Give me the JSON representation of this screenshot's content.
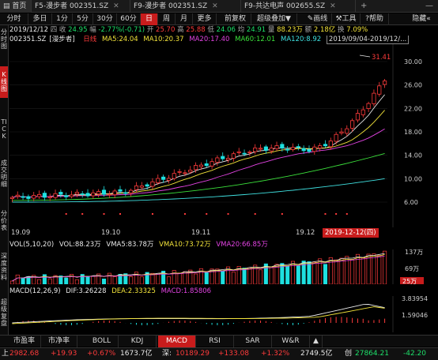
{
  "tabs": [
    {
      "label": "首页",
      "closable": false
    },
    {
      "label": "F5-漫步者 002351.SZ",
      "closable": true
    },
    {
      "label": "F9-漫步者 002351.SZ",
      "closable": true
    },
    {
      "label": "F9-共达电声 002655.SZ",
      "closable": true
    }
  ],
  "window_controls": {
    "add": "+",
    "minimize": "—"
  },
  "toolbar": {
    "periods": [
      "分时",
      "多日",
      "1分",
      "5分",
      "30分",
      "60分",
      "日",
      "周",
      "月",
      "更多"
    ],
    "active_period": "日",
    "buttons": [
      "前复权",
      "超级叠加",
      "画线",
      "工具",
      "帮助",
      "隐藏"
    ],
    "super_overlay_arrow": "▼",
    "hide_arrow": "«"
  },
  "left_strip": {
    "items": [
      "分时图",
      "K线图",
      "TICK",
      "成交明细",
      "分价表",
      "深度资料",
      "超级复盘"
    ],
    "active": "K线图"
  },
  "quote": {
    "date": "2019/12/12",
    "weekday": "四",
    "收_label": "收",
    "收": "24.95",
    "幅_label": "幅",
    "幅": "-2.77%(-0.71)",
    "开_label": "开",
    "开": "25.70",
    "高_label": "高",
    "高": "25.88",
    "低_label": "低",
    "低": "24.06",
    "均_label": "均",
    "均": "24.91",
    "量_label": "量",
    "量": "88.23万",
    "额_label": "额",
    "额": "2.18亿",
    "换_label": "换",
    "换": "7.09%"
  },
  "ma_line": {
    "code": "002351.SZ",
    "name": "[漫步者]",
    "period": "日线",
    "ma5": "MA5:24.04",
    "ma10": "MA10:20.37",
    "ma20": "MA20:17.40",
    "ma60": "MA60:12.01",
    "ma120": "MA120:8.92",
    "date_range": "2019/09/04-2019/12/..."
  },
  "price_axis": [
    "30.00",
    "26.00",
    "22.00",
    "18.00",
    "14.00",
    "10.00",
    "6.00"
  ],
  "high_marker": "31.41",
  "x_axis": [
    "19.09",
    "19.10",
    "19.11",
    "19.12"
  ],
  "current_date_label": "2019-12-12(四)",
  "volume": {
    "title": "VOL(5,10,20)",
    "vol": "VOL:88.23万",
    "vma5": "VMA5:83.78万",
    "vma10": "VMA10:73.72万",
    "vma20": "VMA20:66.85万",
    "axis": [
      "137万",
      "69万",
      "25万"
    ]
  },
  "macd": {
    "title": "MACD(12,26,9)",
    "dif": "DIF:3.26228",
    "dea": "DEA:2.33325",
    "macd": "MACD:1.85806",
    "axis": [
      "3.83954",
      "1.59046"
    ]
  },
  "indicator_tabs": [
    "市盈率",
    "市净率",
    "BOLL",
    "KDJ",
    "MACD",
    "RSI",
    "SAR",
    "W&R"
  ],
  "active_indicator": "MACD",
  "indicator_arrow": "▲",
  "status": {
    "sh_label": "上",
    "sh_value": "2982.68",
    "sh_change": "+19.93",
    "sh_pct": "+0.67%",
    "sh_amount": "1673.7亿",
    "sz_label": "深:",
    "sz_value": "10189.29",
    "sz_change": "+133.08",
    "sz_pct": "+1.32%",
    "sz_amount": "2749.5亿",
    "cyb_label": "创",
    "cyb_value": "27864.21",
    "cyb_change": "-42.20"
  },
  "colors": {
    "up": "#ff3b3b",
    "down": "#1ee0e0",
    "ma5": "#e8e8e8",
    "ma10": "#f2e33a",
    "ma20": "#e243e2",
    "ma60": "#3be03b",
    "ma120": "#3fe0e0",
    "active": "#c81c1c"
  }
}
